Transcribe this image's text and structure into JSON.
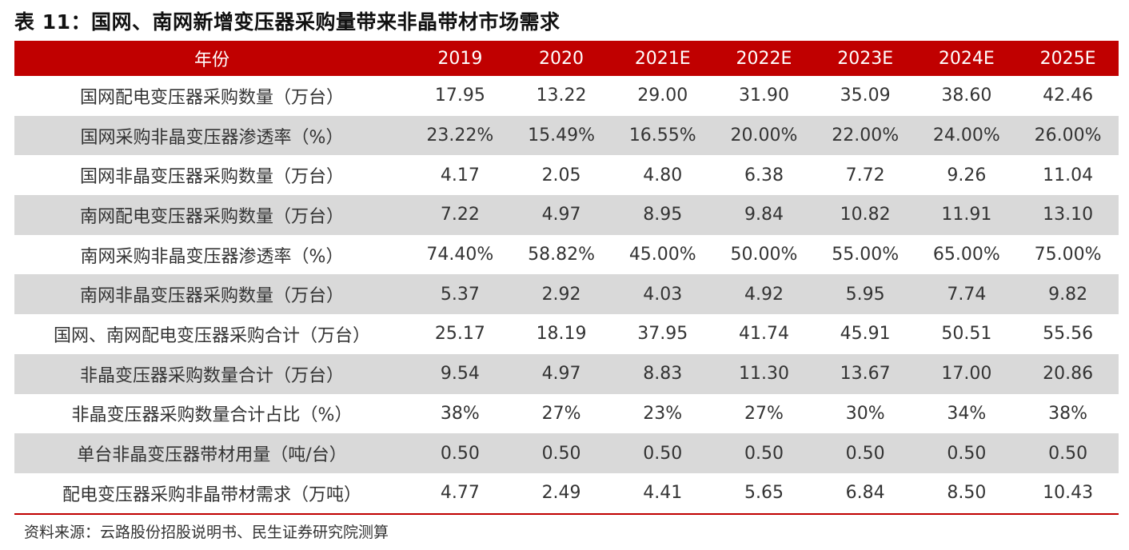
{
  "title": "表 11：国网、南网新增变压器采购量带来非晶带材市场需求",
  "header": [
    "年份",
    "2019",
    "2020",
    "2021E",
    "2022E",
    "2023E",
    "2024E",
    "2025E"
  ],
  "rows": [
    {
      "label": "国网配电变压器采购数量（万台）",
      "values": [
        "17.95",
        "13.22",
        "29.00",
        "31.90",
        "35.09",
        "38.60",
        "42.46"
      ]
    },
    {
      "label": "国网采购非晶变压器渗透率（%）",
      "values": [
        "23.22%",
        "15.49%",
        "16.55%",
        "20.00%",
        "22.00%",
        "24.00%",
        "26.00%"
      ]
    },
    {
      "label": "国网非晶变压器采购数量（万台）",
      "values": [
        "4.17",
        "2.05",
        "4.80",
        "6.38",
        "7.72",
        "9.26",
        "11.04"
      ]
    },
    {
      "label": "南网配电变压器采购数量（万台）",
      "values": [
        "7.22",
        "4.97",
        "8.95",
        "9.84",
        "10.82",
        "11.91",
        "13.10"
      ]
    },
    {
      "label": "南网采购非晶变压器渗透率（%）",
      "values": [
        "74.40%",
        "58.82%",
        "45.00%",
        "50.00%",
        "55.00%",
        "65.00%",
        "75.00%"
      ]
    },
    {
      "label": "南网非晶变压器采购数量（万台）",
      "values": [
        "5.37",
        "2.92",
        "4.03",
        "4.92",
        "5.95",
        "7.74",
        "9.82"
      ]
    },
    {
      "label": "国网、南网配电变压器采购合计（万台）",
      "values": [
        "25.17",
        "18.19",
        "37.95",
        "41.74",
        "45.91",
        "50.51",
        "55.56"
      ]
    },
    {
      "label": "非晶变压器采购数量合计（万台）",
      "values": [
        "9.54",
        "4.97",
        "8.83",
        "11.30",
        "13.67",
        "17.00",
        "20.86"
      ]
    },
    {
      "label": "非晶变压器采购数量合计占比（%）",
      "values": [
        "38%",
        "27%",
        "23%",
        "27%",
        "30%",
        "34%",
        "38%"
      ]
    },
    {
      "label": "单台非晶变压器带材用量（吨/台）",
      "values": [
        "0.50",
        "0.50",
        "0.50",
        "0.50",
        "0.50",
        "0.50",
        "0.50"
      ]
    },
    {
      "label": "配电变压器采购非晶带材需求（万吨）",
      "values": [
        "4.77",
        "2.49",
        "4.41",
        "5.65",
        "6.84",
        "8.50",
        "10.43"
      ]
    }
  ],
  "source": "资料来源：云路股份招股说明书、民生证券研究院测算",
  "colors": {
    "header_bg": "#c00000",
    "shade": "#d9d9d9"
  }
}
